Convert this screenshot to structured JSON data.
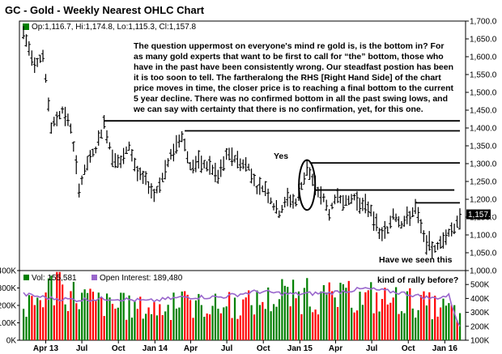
{
  "chart_data": {
    "type": "ohlc",
    "title": "GC - Gold - Weekly Nearest OHLC Chart",
    "ohlc_readout": {
      "open": "1,116.7",
      "high": "1,174.8",
      "low": "1,115.3",
      "close": "1,157.8",
      "text": "Op:1,116.7, Hi:1,174.8, Lo:1,115.3, Cl:1,157.8"
    },
    "price_axis": {
      "min": 1000,
      "max": 1700,
      "ticks": [
        {
          "value": 1700,
          "label": "1,700.0"
        },
        {
          "value": 1650,
          "label": "1,650.0"
        },
        {
          "value": 1600,
          "label": "1,600.0"
        },
        {
          "value": 1550,
          "label": "1,550.0"
        },
        {
          "value": 1500,
          "label": "1,500.0"
        },
        {
          "value": 1450,
          "label": "1,450.0"
        },
        {
          "value": 1400,
          "label": "1,400.0"
        },
        {
          "value": 1350,
          "label": "1,350.0"
        },
        {
          "value": 1300,
          "label": "1,300.0"
        },
        {
          "value": 1250,
          "label": "1,250.0"
        },
        {
          "value": 1200,
          "label": "1,200.0"
        },
        {
          "value": 1150,
          "label": "1,150.0"
        },
        {
          "value": 1100,
          "label": "1,100.0"
        },
        {
          "value": 1050,
          "label": "1,050.0"
        },
        {
          "value": 1000,
          "label": "1,000.0"
        }
      ],
      "last_price_label": "1,157.8",
      "last_price_value": 1157.8
    },
    "x_axis": {
      "start": "2013-02-04",
      "end": "2016-02-08",
      "ticks": [
        {
          "date": "2013-04-01",
          "label": "Apr 13"
        },
        {
          "date": "2013-07-01",
          "label": "Jul"
        },
        {
          "date": "2013-10-01",
          "label": "Oct"
        },
        {
          "date": "2014-01-01",
          "label": "Jan 14"
        },
        {
          "date": "2014-04-01",
          "label": "Apr"
        },
        {
          "date": "2014-07-01",
          "label": "Jul"
        },
        {
          "date": "2014-10-01",
          "label": "Oct"
        },
        {
          "date": "2015-01-01",
          "label": "Jan 15"
        },
        {
          "date": "2015-04-01",
          "label": "Apr"
        },
        {
          "date": "2015-07-01",
          "label": "Jul"
        },
        {
          "date": "2015-10-01",
          "label": "Oct"
        },
        {
          "date": "2016-01-01",
          "label": "Jan 16"
        }
      ]
    },
    "price_series": [
      [
        "2013-02-04",
        1665
      ],
      [
        "2013-03-04",
        1580
      ],
      [
        "2013-03-25",
        1600
      ],
      [
        "2013-04-15",
        1400
      ],
      [
        "2013-05-13",
        1450
      ],
      [
        "2013-06-03",
        1400
      ],
      [
        "2013-06-24",
        1230
      ],
      [
        "2013-07-15",
        1300
      ],
      [
        "2013-08-05",
        1340
      ],
      [
        "2013-08-26",
        1410
      ],
      [
        "2013-09-16",
        1320
      ],
      [
        "2013-10-07",
        1300
      ],
      [
        "2013-10-28",
        1350
      ],
      [
        "2013-11-18",
        1270
      ],
      [
        "2013-12-09",
        1250
      ],
      [
        "2013-12-30",
        1210
      ],
      [
        "2014-01-20",
        1260
      ],
      [
        "2014-02-10",
        1320
      ],
      [
        "2014-03-10",
        1380
      ],
      [
        "2014-03-31",
        1290
      ],
      [
        "2014-04-21",
        1300
      ],
      [
        "2014-05-19",
        1290
      ],
      [
        "2014-06-09",
        1260
      ],
      [
        "2014-06-30",
        1320
      ],
      [
        "2014-07-14",
        1320
      ],
      [
        "2014-08-04",
        1300
      ],
      [
        "2014-08-25",
        1290
      ],
      [
        "2014-09-15",
        1230
      ],
      [
        "2014-10-06",
        1230
      ],
      [
        "2014-10-27",
        1180
      ],
      [
        "2014-11-10",
        1160
      ],
      [
        "2014-12-01",
        1200
      ],
      [
        "2014-12-22",
        1190
      ],
      [
        "2015-01-12",
        1260
      ],
      [
        "2015-01-19",
        1290
      ],
      [
        "2015-02-09",
        1230
      ],
      [
        "2015-03-02",
        1200
      ],
      [
        "2015-03-16",
        1160
      ],
      [
        "2015-04-06",
        1210
      ],
      [
        "2015-04-27",
        1190
      ],
      [
        "2015-05-18",
        1205
      ],
      [
        "2015-06-08",
        1180
      ],
      [
        "2015-06-29",
        1170
      ],
      [
        "2015-07-20",
        1100
      ],
      [
        "2015-08-10",
        1110
      ],
      [
        "2015-08-24",
        1160
      ],
      [
        "2015-09-14",
        1130
      ],
      [
        "2015-10-05",
        1150
      ],
      [
        "2015-10-19",
        1175
      ],
      [
        "2015-11-09",
        1090
      ],
      [
        "2015-11-30",
        1060
      ],
      [
        "2015-12-14",
        1065
      ],
      [
        "2016-01-04",
        1100
      ],
      [
        "2016-01-25",
        1120
      ],
      [
        "2016-02-08",
        1157.8
      ]
    ],
    "resistance_lines": [
      {
        "price": 1420,
        "from": "2013-08-26",
        "to": "2016-02-08"
      },
      {
        "price": 1392,
        "from": "2014-03-17",
        "to": "2016-02-08"
      },
      {
        "price": 1302,
        "from": "2015-01-26",
        "to": "2016-02-08"
      },
      {
        "price": 1226,
        "from": "2015-02-09",
        "to": "2016-01-25"
      },
      {
        "price": 1190,
        "from": "2015-10-19",
        "to": "2016-02-08"
      }
    ],
    "highlight_ellipse": {
      "center_date": "2015-01-19",
      "price_low": 1170,
      "price_high": 1310
    },
    "annotations": {
      "commentary": [
        "The question uppermost on everyone's mind re gold is, is the bottom in?  For",
        "as many gold experts that want to be first to call for “the” bottom, those who",
        "have in the past have been consistently wrong.  Our steadfast postion has been",
        "it is too soon to tell.  The fartheralong the RHS [Right Hand Side] of the chart",
        "price moves in time, the closer price is to reaching a final bottom to the current",
        "5 year decline.  There was no confirmed bottom in all the past swing lows, and",
        "we can say with certainty that there is no confirmation, yet, for this one."
      ],
      "yes": "Yes",
      "question_line1": "Have we seen this",
      "question_line2": "kind of rally before?"
    },
    "volume": {
      "vol_label": "Vol: 155,581",
      "oi_label": "Open Interest: 189,480",
      "left_axis": {
        "min": 0,
        "max": 400000,
        "ticks": [
          {
            "value": 400000,
            "label": "400K"
          },
          {
            "value": 300000,
            "label": "300K"
          },
          {
            "value": 200000,
            "label": "200K"
          },
          {
            "value": 100000,
            "label": "100K"
          },
          {
            "value": 0,
            "label": "0K"
          }
        ]
      },
      "right_axis": {
        "min": 100000,
        "max": 600000,
        "ticks": [
          {
            "value": 500000,
            "label": "500K"
          },
          {
            "value": 400000,
            "label": "400K"
          },
          {
            "value": 300000,
            "label": "300K"
          },
          {
            "value": 200000,
            "label": "200K"
          },
          {
            "value": 100000,
            "label": "100K"
          }
        ]
      },
      "volume_profile": [
        [
          "2013-02-04",
          160000
        ],
        [
          "2013-04-15",
          300000
        ],
        [
          "2013-06-24",
          250000
        ],
        [
          "2013-09-16",
          190000
        ],
        [
          "2014-01-06",
          180000
        ],
        [
          "2014-04-14",
          200000
        ],
        [
          "2014-07-14",
          190000
        ],
        [
          "2014-10-06",
          230000
        ],
        [
          "2014-12-15",
          250000
        ],
        [
          "2015-03-16",
          240000
        ],
        [
          "2015-06-15",
          230000
        ],
        [
          "2015-09-14",
          230000
        ],
        [
          "2016-01-04",
          180000
        ],
        [
          "2016-02-08",
          155581
        ]
      ],
      "open_interest_series": [
        [
          "2013-02-04",
          430000
        ],
        [
          "2013-04-15",
          400000
        ],
        [
          "2013-06-24",
          390000
        ],
        [
          "2013-09-16",
          400000
        ],
        [
          "2013-12-16",
          380000
        ],
        [
          "2014-03-17",
          410000
        ],
        [
          "2014-06-16",
          410000
        ],
        [
          "2014-09-15",
          450000
        ],
        [
          "2014-12-15",
          430000
        ],
        [
          "2015-03-16",
          440000
        ],
        [
          "2015-06-15",
          470000
        ],
        [
          "2015-09-14",
          440000
        ],
        [
          "2015-11-30",
          400000
        ],
        [
          "2016-01-11",
          420000
        ],
        [
          "2016-02-08",
          189480
        ]
      ]
    },
    "colors": {
      "up": "#008000",
      "down": "#ff0000",
      "open_interest": "#9966cc",
      "bars": "#000000",
      "background": "#ffffff",
      "legend_up": "#008000",
      "legend_oi": "#9966cc"
    }
  }
}
